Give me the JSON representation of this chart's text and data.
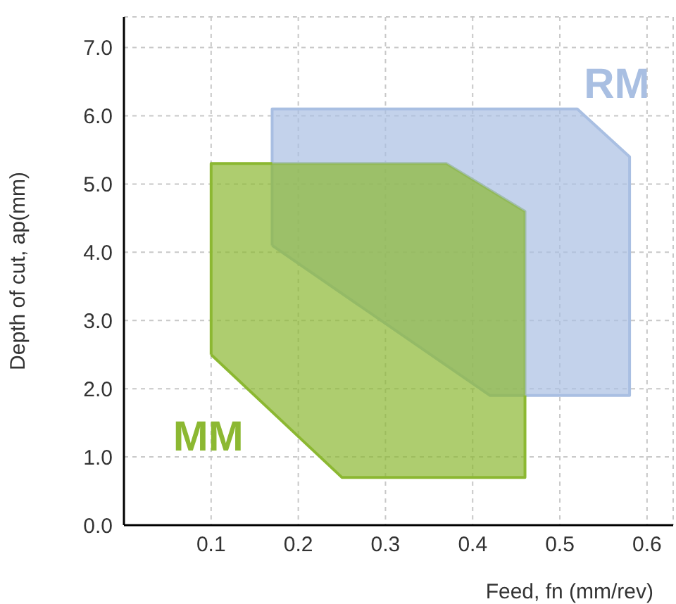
{
  "chart_data": {
    "type": "area",
    "xlabel": "Feed, fn (mm/rev)",
    "ylabel": "Depth of cut, ap(mm)",
    "xlim": [
      0,
      0.63
    ],
    "xticks": [
      0.1,
      0.2,
      0.3,
      0.4,
      0.5,
      0.6
    ],
    "ylim": [
      0,
      7.45
    ],
    "yticks": [
      {
        "value": 0,
        "label": "0.0"
      },
      {
        "value": 1,
        "label": "1.0"
      },
      {
        "value": 2,
        "label": "2.0"
      },
      {
        "value": 3,
        "label": "3.0"
      },
      {
        "value": 4,
        "label": "4.0"
      },
      {
        "value": 5,
        "label": "5.0"
      },
      {
        "value": 6,
        "label": "6.0"
      },
      {
        "value": 7,
        "label": "7.0"
      }
    ],
    "grid": true,
    "series": [
      {
        "name": "RM",
        "color": "#a9bfe2",
        "x": [
          0.17,
          0.17,
          0.52,
          0.58,
          0.58,
          0.42,
          0.17
        ],
        "values": [
          4.1,
          6.1,
          6.1,
          5.4,
          1.9,
          1.9,
          4.1
        ]
      },
      {
        "name": "MM",
        "color": "#8cb832",
        "x": [
          0.1,
          0.1,
          0.37,
          0.46,
          0.46,
          0.25,
          0.1
        ],
        "values": [
          2.5,
          5.3,
          5.3,
          4.6,
          0.7,
          0.7,
          2.5
        ]
      }
    ]
  }
}
